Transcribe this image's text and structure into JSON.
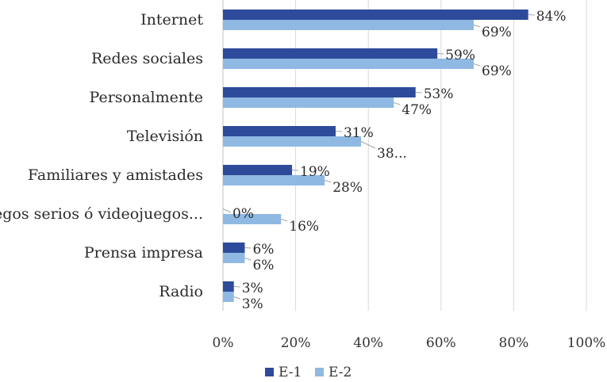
{
  "chart_data": {
    "type": "bar",
    "orientation": "horizontal",
    "title": "",
    "xlabel": "",
    "ylabel": "",
    "xlim": [
      0,
      100
    ],
    "x_ticks": [
      "0%",
      "20%",
      "40%",
      "60%",
      "80%",
      "100%"
    ],
    "grid": true,
    "legend_position": "bottom",
    "categories": [
      "Internet",
      "Redes sociales",
      "Personalmente",
      "Televisión",
      "Familiares y amistades",
      "Juegos serios ó videojuegos...",
      "Prensa impresa",
      "Radio"
    ],
    "series": [
      {
        "name": "E-1",
        "color": "#2e4b9b",
        "values": [
          84,
          59,
          53,
          31,
          19,
          0,
          6,
          3
        ],
        "labels": [
          "84%",
          "59%",
          "53%",
          "31%",
          "19%",
          "0%",
          "6%",
          "3%"
        ]
      },
      {
        "name": "E-2",
        "color": "#8fb9e3",
        "values": [
          69,
          69,
          47,
          38,
          28,
          16,
          6,
          3
        ],
        "labels": [
          "69%",
          "69%",
          "47%",
          "38...",
          "28%",
          "16%",
          "6%",
          "3%"
        ]
      }
    ]
  }
}
